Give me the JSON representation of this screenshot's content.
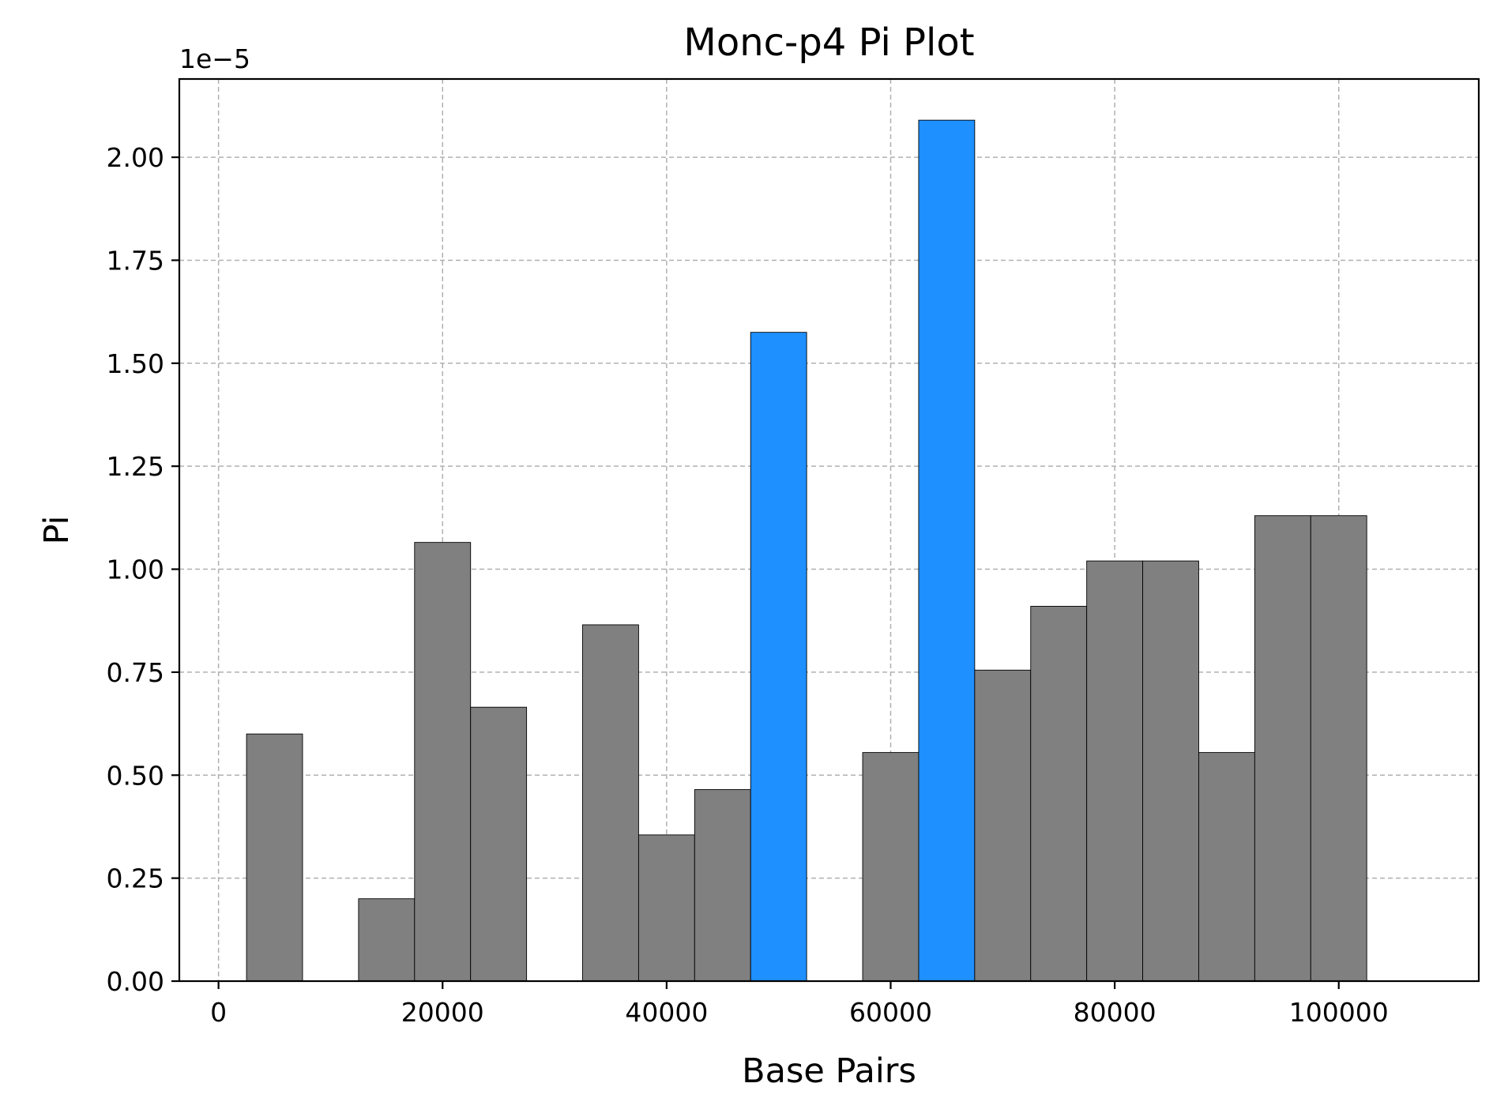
{
  "chart_data": {
    "type": "bar",
    "title": "Monc-p4 Pi Plot",
    "xlabel": "Base Pairs",
    "ylabel": "Pi",
    "y_offset_label": "1e−5",
    "y_scale_factor": 1e-05,
    "xlim": [
      -3500,
      112500
    ],
    "ylim": [
      0,
      2.19
    ],
    "grid": true,
    "bar_width": 5000,
    "colors": {
      "default": "#808080",
      "highlight": "#1e90ff",
      "edge": "#000000",
      "grid": "#b0b0b0"
    },
    "x_ticks": [
      {
        "value": 0,
        "label": "0"
      },
      {
        "value": 20000,
        "label": "20000"
      },
      {
        "value": 40000,
        "label": "40000"
      },
      {
        "value": 60000,
        "label": "60000"
      },
      {
        "value": 80000,
        "label": "80000"
      },
      {
        "value": 100000,
        "label": "100000"
      }
    ],
    "y_ticks": [
      {
        "value": 0.0,
        "label": "0.00"
      },
      {
        "value": 0.25,
        "label": "0.25"
      },
      {
        "value": 0.5,
        "label": "0.50"
      },
      {
        "value": 0.75,
        "label": "0.75"
      },
      {
        "value": 1.0,
        "label": "1.00"
      },
      {
        "value": 1.25,
        "label": "1.25"
      },
      {
        "value": 1.5,
        "label": "1.50"
      },
      {
        "value": 1.75,
        "label": "1.75"
      },
      {
        "value": 2.0,
        "label": "2.00"
      }
    ],
    "bars": [
      {
        "x": 5000,
        "value": 0.6,
        "highlight": false
      },
      {
        "x": 15000,
        "value": 0.2,
        "highlight": false
      },
      {
        "x": 20000,
        "value": 1.065,
        "highlight": false
      },
      {
        "x": 25000,
        "value": 0.665,
        "highlight": false
      },
      {
        "x": 35000,
        "value": 0.865,
        "highlight": false
      },
      {
        "x": 40000,
        "value": 0.355,
        "highlight": false
      },
      {
        "x": 45000,
        "value": 0.465,
        "highlight": false
      },
      {
        "x": 50000,
        "value": 1.575,
        "highlight": true
      },
      {
        "x": 60000,
        "value": 0.555,
        "highlight": false
      },
      {
        "x": 65000,
        "value": 2.09,
        "highlight": true
      },
      {
        "x": 70000,
        "value": 0.755,
        "highlight": false
      },
      {
        "x": 75000,
        "value": 0.91,
        "highlight": false
      },
      {
        "x": 80000,
        "value": 1.02,
        "highlight": false
      },
      {
        "x": 85000,
        "value": 1.02,
        "highlight": false
      },
      {
        "x": 90000,
        "value": 0.555,
        "highlight": false
      },
      {
        "x": 95000,
        "value": 1.13,
        "highlight": false
      },
      {
        "x": 100000,
        "value": 1.13,
        "highlight": false
      }
    ]
  }
}
